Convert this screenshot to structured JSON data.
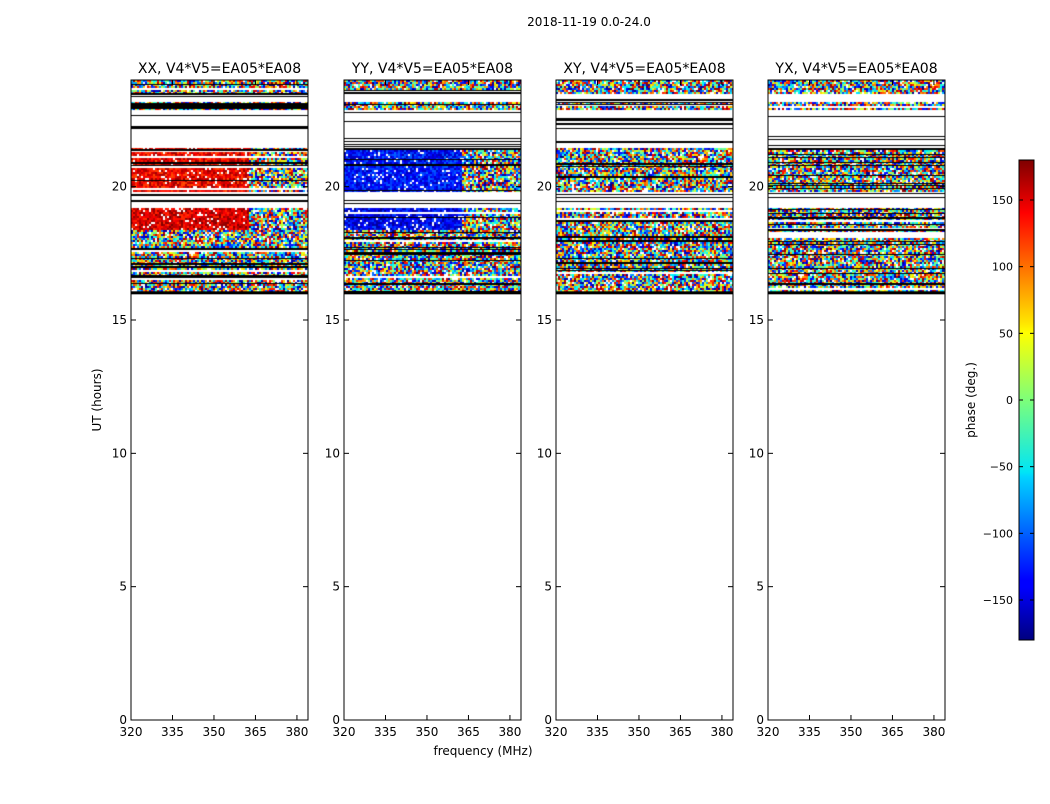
{
  "figure_title": "2018-11-19 0.0-24.0",
  "chart_data": {
    "type": "heatmap",
    "suptitle": "2018-11-19 0.0-24.0",
    "ylabel": "UT (hours)",
    "xlabel": "frequency (MHz)",
    "ylim": [
      0,
      24
    ],
    "xlim": [
      320,
      384
    ],
    "xticks": [
      320,
      335,
      350,
      365,
      380
    ],
    "yticks": [
      0,
      5,
      10,
      15,
      20
    ],
    "panels": [
      {
        "title": "XX, V4*V5=EA05*EA08",
        "pol": "XX"
      },
      {
        "title": "YY, V4*V5=EA05*EA08",
        "pol": "YY"
      },
      {
        "title": "XY, V4*V5=EA05*EA08",
        "pol": "XY"
      },
      {
        "title": "YX, V4*V5=EA05*EA08",
        "pol": "YX"
      }
    ],
    "data_rows_ut": [
      [
        16.0,
        16.9
      ],
      [
        16.9,
        17.5
      ],
      [
        17.5,
        18.4
      ],
      [
        18.4,
        19.2
      ],
      [
        19.8,
        21.5
      ],
      [
        22.9,
        23.2
      ],
      [
        23.5,
        24.0
      ]
    ],
    "gap_rows_ut": [
      [
        19.2,
        19.8
      ],
      [
        21.5,
        22.9
      ],
      [
        23.2,
        23.5
      ]
    ],
    "coherent_phase_blocks": [
      {
        "panel": "XX",
        "ut": [
          18.4,
          19.2
        ],
        "freq": [
          320,
          362
        ],
        "phase_deg": 150
      },
      {
        "panel": "XX",
        "ut": [
          19.8,
          21.5
        ],
        "freq": [
          320,
          362
        ],
        "phase_deg": 140
      },
      {
        "panel": "YY",
        "ut": [
          18.4,
          19.2
        ],
        "freq": [
          320,
          362
        ],
        "phase_deg": -140
      },
      {
        "panel": "YY",
        "ut": [
          19.8,
          21.5
        ],
        "freq": [
          320,
          362
        ],
        "phase_deg": -130
      }
    ],
    "colorbar": {
      "label": "phase (deg.)",
      "range": [
        -180,
        180
      ],
      "ticks": [
        150,
        100,
        50,
        0,
        -50,
        -100,
        -150
      ],
      "tick_labels": [
        "150",
        "100",
        "50",
        "0",
        "−50",
        "−100",
        "−150"
      ],
      "colormap": "jet"
    }
  }
}
